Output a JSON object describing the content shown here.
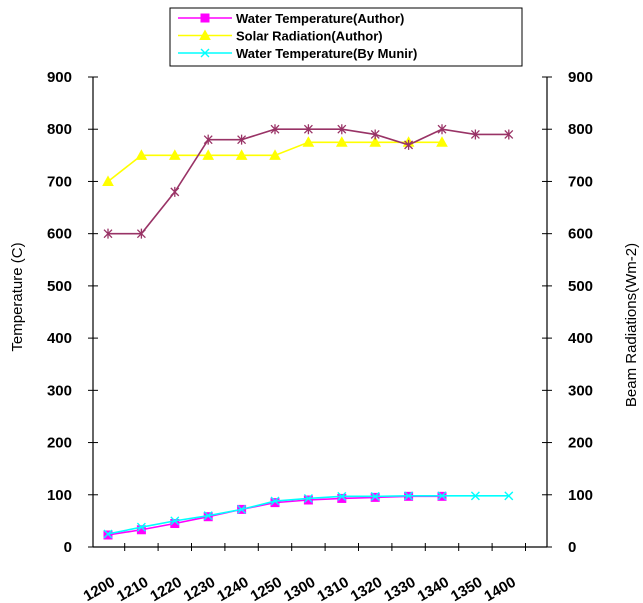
{
  "chart_data": {
    "type": "line",
    "categories": [
      "1200",
      "1210",
      "1220",
      "1230",
      "1240",
      "1250",
      "1300",
      "1310",
      "1320",
      "1330",
      "1340",
      "1350",
      "1400"
    ],
    "ylabel_left": "Temperature (C)",
    "ylabel_right": "Beam Radiations(Wm-2)",
    "ylim": [
      0,
      900
    ],
    "yticks": [
      0,
      100,
      200,
      300,
      400,
      500,
      600,
      700,
      800,
      900
    ],
    "grid": false,
    "legend_position": "top",
    "series": [
      {
        "name": "Water Temperature(Author)",
        "color": "#ff00ff",
        "marker": "square",
        "values": [
          23,
          33,
          45,
          58,
          72,
          85,
          90,
          93,
          95,
          97,
          97,
          null,
          null
        ]
      },
      {
        "name": "Solar Radiation(Author)",
        "color": "#ffff00",
        "marker": "triangle",
        "values": [
          700,
          750,
          750,
          750,
          750,
          750,
          775,
          775,
          775,
          775,
          775,
          null,
          null
        ]
      },
      {
        "name": "Water Temperature(By Munir)",
        "color": "#00ffff",
        "marker": "x",
        "values": [
          25,
          38,
          50,
          60,
          72,
          88,
          93,
          97,
          97,
          98,
          98,
          98,
          98
        ]
      },
      {
        "name": "",
        "color": "#993366",
        "marker": "star",
        "values": [
          600,
          600,
          680,
          780,
          780,
          800,
          800,
          800,
          790,
          770,
          800,
          790,
          790
        ]
      }
    ]
  }
}
